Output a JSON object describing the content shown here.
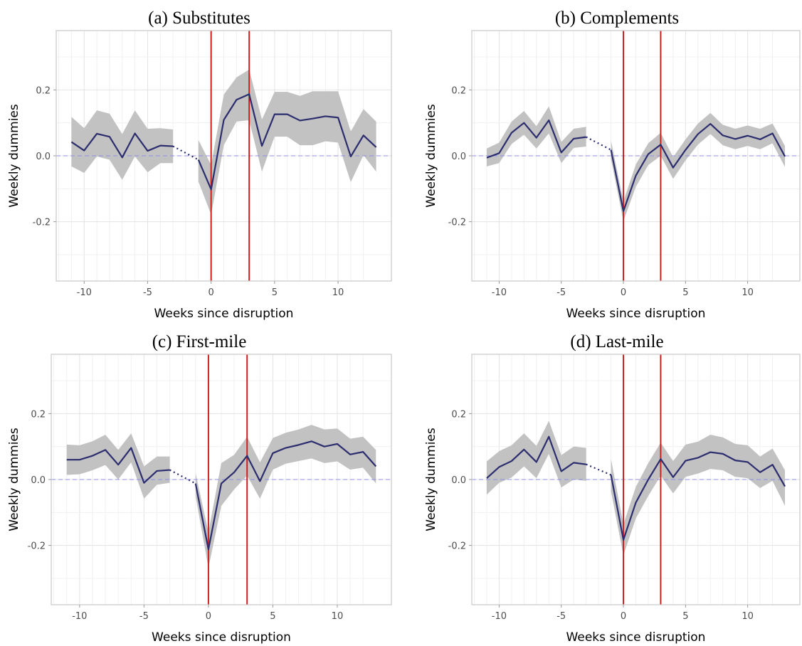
{
  "chart_data": [
    {
      "type": "line",
      "title": "(a) Substitutes",
      "xlabel": "Weeks since disruption",
      "ylabel": "Weekly dummies",
      "xlim": [
        -12.2,
        14.2
      ],
      "ylim": [
        -0.38,
        0.38
      ],
      "xticks": [
        -10,
        -5,
        0,
        5,
        10
      ],
      "xtick_labels": [
        "-10",
        "-5",
        "0",
        "5",
        "10"
      ],
      "yticks": [
        -0.2,
        0.0,
        0.2
      ],
      "ytick_labels": [
        "-0.2",
        "0.0",
        "0.2"
      ],
      "grid": true,
      "reference_lines": {
        "horizontal_dashed": 0,
        "vertical": [
          0,
          3
        ]
      },
      "colors": {
        "line": "#2b2d6e",
        "band": "#c2c2c2",
        "vline": "#cc1f1f",
        "hline": "#8f8fe6"
      },
      "series": [
        {
          "x": [
            -11,
            -10,
            -9,
            -8,
            -7,
            -6,
            -5,
            -4,
            -3
          ],
          "y": [
            0.042,
            0.016,
            0.067,
            0.058,
            -0.005,
            0.068,
            0.015,
            0.031,
            0.029
          ],
          "lower": [
            -0.032,
            -0.052,
            -0.002,
            -0.012,
            -0.073,
            -0.002,
            -0.05,
            -0.022,
            -0.022
          ],
          "upper": [
            0.118,
            0.084,
            0.138,
            0.128,
            0.066,
            0.138,
            0.082,
            0.084,
            0.08
          ]
        },
        {
          "x": [
            -1,
            0,
            1,
            2,
            3,
            4,
            5,
            6,
            7,
            8,
            9,
            10,
            11,
            12,
            13
          ],
          "y": [
            -0.012,
            -0.102,
            0.109,
            0.17,
            0.187,
            0.03,
            0.126,
            0.126,
            0.107,
            0.113,
            0.12,
            0.116,
            -0.002,
            0.062,
            0.026
          ],
          "lower": [
            -0.078,
            -0.178,
            0.032,
            0.104,
            0.108,
            -0.048,
            0.058,
            0.058,
            0.032,
            0.032,
            0.044,
            0.04,
            -0.08,
            0.002,
            -0.048
          ],
          "upper": [
            0.048,
            -0.028,
            0.186,
            0.238,
            0.262,
            0.11,
            0.194,
            0.194,
            0.182,
            0.196,
            0.196,
            0.196,
            0.074,
            0.142,
            0.104
          ]
        }
      ],
      "connector": {
        "x": [
          -3,
          -1
        ],
        "y": [
          0.029,
          -0.012
        ]
      }
    },
    {
      "type": "line",
      "title": "(b) Complements",
      "xlabel": "Weeks since disruption",
      "ylabel": "Weekly dummies",
      "xlim": [
        -12.2,
        14.2
      ],
      "ylim": [
        -0.38,
        0.38
      ],
      "xticks": [
        -10,
        -5,
        0,
        5,
        10
      ],
      "xtick_labels": [
        "-10",
        "-5",
        "0",
        "5",
        "10"
      ],
      "yticks": [
        -0.2,
        0.0,
        0.2
      ],
      "ytick_labels": [
        "-0.2",
        "0.0",
        "0.2"
      ],
      "grid": true,
      "reference_lines": {
        "horizontal_dashed": 0,
        "vertical": [
          0,
          3
        ]
      },
      "colors": {
        "line": "#2b2d6e",
        "band": "#c2c2c2",
        "vline": "#cc1f1f",
        "hline": "#8f8fe6"
      },
      "series": [
        {
          "x": [
            -11,
            -10,
            -9,
            -8,
            -7,
            -6,
            -5,
            -4,
            -3
          ],
          "y": [
            -0.006,
            0.008,
            0.07,
            0.1,
            0.055,
            0.108,
            0.01,
            0.052,
            0.057
          ],
          "lower": [
            -0.032,
            -0.022,
            0.036,
            0.064,
            0.022,
            0.068,
            -0.022,
            0.024,
            0.028
          ],
          "upper": [
            0.022,
            0.04,
            0.104,
            0.136,
            0.09,
            0.15,
            0.042,
            0.082,
            0.088
          ]
        },
        {
          "x": [
            -1,
            0,
            1,
            2,
            3,
            4,
            5,
            6,
            7,
            8,
            9,
            10,
            11,
            12,
            13
          ],
          "y": [
            0.018,
            -0.168,
            -0.06,
            0.005,
            0.034,
            -0.036,
            0.018,
            0.066,
            0.097,
            0.062,
            0.051,
            0.061,
            0.05,
            0.068,
            -0.002
          ],
          "lower": [
            -0.01,
            -0.198,
            -0.094,
            -0.028,
            0.0,
            -0.07,
            -0.014,
            0.034,
            0.066,
            0.032,
            0.02,
            0.03,
            0.02,
            0.038,
            -0.034
          ],
          "upper": [
            0.046,
            -0.138,
            -0.026,
            0.038,
            0.07,
            -0.004,
            0.05,
            0.098,
            0.13,
            0.094,
            0.082,
            0.092,
            0.082,
            0.098,
            0.03
          ]
        }
      ],
      "connector": {
        "x": [
          -3,
          -1
        ],
        "y": [
          0.057,
          0.018
        ]
      }
    },
    {
      "type": "line",
      "title": "(c) First-mile",
      "xlabel": "Weeks since disruption",
      "ylabel": "Weekly dummies",
      "xlim": [
        -12.2,
        14.2
      ],
      "ylim": [
        -0.38,
        0.38
      ],
      "xticks": [
        -10,
        -5,
        0,
        5,
        10
      ],
      "xtick_labels": [
        "-10",
        "-5",
        "0",
        "5",
        "10"
      ],
      "yticks": [
        -0.2,
        0.0,
        0.2
      ],
      "ytick_labels": [
        "-0.2",
        "0.0",
        "0.2"
      ],
      "grid": true,
      "reference_lines": {
        "horizontal_dashed": 0,
        "vertical": [
          0,
          3
        ]
      },
      "colors": {
        "line": "#2b2d6e",
        "band": "#c2c2c2",
        "vline": "#cc1f1f",
        "hline": "#8f8fe6"
      },
      "series": [
        {
          "x": [
            -11,
            -10,
            -9,
            -8,
            -7,
            -6,
            -5,
            -4,
            -3
          ],
          "y": [
            0.06,
            0.06,
            0.072,
            0.09,
            0.045,
            0.096,
            -0.01,
            0.026,
            0.029
          ],
          "lower": [
            0.014,
            0.016,
            0.028,
            0.044,
            0.0,
            0.052,
            -0.058,
            -0.016,
            -0.01
          ],
          "upper": [
            0.106,
            0.104,
            0.116,
            0.136,
            0.09,
            0.14,
            0.04,
            0.07,
            0.07
          ]
        },
        {
          "x": [
            -1,
            0,
            1,
            2,
            3,
            4,
            5,
            6,
            7,
            8,
            9,
            10,
            11,
            12,
            13
          ],
          "y": [
            -0.012,
            -0.212,
            -0.012,
            0.022,
            0.072,
            -0.005,
            0.08,
            0.096,
            0.105,
            0.116,
            0.1,
            0.108,
            0.076,
            0.084,
            0.04
          ],
          "lower": [
            -0.05,
            -0.268,
            -0.08,
            -0.03,
            0.012,
            -0.058,
            0.03,
            0.048,
            0.056,
            0.064,
            0.05,
            0.055,
            0.03,
            0.036,
            -0.012
          ],
          "upper": [
            0.02,
            -0.16,
            0.05,
            0.075,
            0.13,
            0.052,
            0.126,
            0.142,
            0.152,
            0.166,
            0.152,
            0.155,
            0.124,
            0.13,
            0.09
          ]
        }
      ],
      "connector": {
        "x": [
          -3,
          -1
        ],
        "y": [
          0.029,
          -0.012
        ]
      }
    },
    {
      "type": "line",
      "title": "(d) Last-mile",
      "xlabel": "Weeks since disruption",
      "ylabel": "Weekly dummies",
      "xlim": [
        -12.2,
        14.2
      ],
      "ylim": [
        -0.38,
        0.38
      ],
      "xticks": [
        -10,
        -5,
        0,
        5,
        10
      ],
      "xtick_labels": [
        "-10",
        "-5",
        "0",
        "5",
        "10"
      ],
      "yticks": [
        -0.2,
        0.0,
        0.2
      ],
      "ytick_labels": [
        "-0.2",
        "0.0",
        "0.2"
      ],
      "grid": true,
      "reference_lines": {
        "horizontal_dashed": 0,
        "vertical": [
          0,
          3
        ]
      },
      "colors": {
        "line": "#2b2d6e",
        "band": "#c2c2c2",
        "vline": "#cc1f1f",
        "hline": "#8f8fe6"
      },
      "series": [
        {
          "x": [
            -11,
            -10,
            -9,
            -8,
            -7,
            -6,
            -5,
            -4,
            -3
          ],
          "y": [
            0.004,
            0.038,
            0.056,
            0.091,
            0.053,
            0.13,
            0.025,
            0.051,
            0.046
          ],
          "lower": [
            -0.046,
            -0.01,
            0.006,
            0.04,
            0.004,
            0.078,
            -0.024,
            0.0,
            -0.004
          ],
          "upper": [
            0.055,
            0.086,
            0.104,
            0.14,
            0.102,
            0.178,
            0.074,
            0.1,
            0.096
          ]
        },
        {
          "x": [
            -1,
            0,
            1,
            2,
            3,
            4,
            5,
            6,
            7,
            8,
            9,
            10,
            11,
            12,
            13
          ],
          "y": [
            0.014,
            -0.183,
            -0.07,
            0.0,
            0.062,
            0.007,
            0.057,
            0.066,
            0.083,
            0.078,
            0.058,
            0.053,
            0.022,
            0.045,
            -0.021
          ],
          "lower": [
            -0.036,
            -0.23,
            -0.118,
            -0.05,
            0.012,
            -0.042,
            0.008,
            0.018,
            0.032,
            0.028,
            0.008,
            0.004,
            -0.026,
            -0.004,
            -0.08
          ],
          "upper": [
            0.062,
            -0.136,
            -0.022,
            0.05,
            0.112,
            0.056,
            0.106,
            0.115,
            0.136,
            0.128,
            0.108,
            0.104,
            0.07,
            0.094,
            0.028
          ]
        }
      ],
      "connector": {
        "x": [
          -3,
          -1
        ],
        "y": [
          0.046,
          0.014
        ]
      }
    }
  ]
}
